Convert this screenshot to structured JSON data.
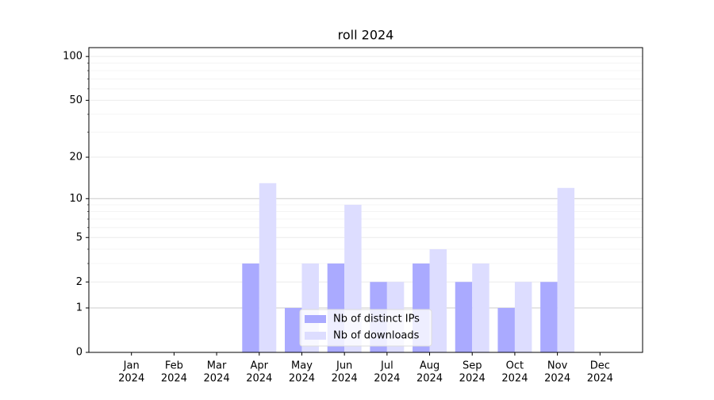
{
  "chart_data": {
    "type": "bar",
    "title": "roll 2024",
    "categories": [
      [
        "Jan",
        "2024"
      ],
      [
        "Feb",
        "2024"
      ],
      [
        "Mar",
        "2024"
      ],
      [
        "Apr",
        "2024"
      ],
      [
        "May",
        "2024"
      ],
      [
        "Jun",
        "2024"
      ],
      [
        "Jul",
        "2024"
      ],
      [
        "Aug",
        "2024"
      ],
      [
        "Sep",
        "2024"
      ],
      [
        "Oct",
        "2024"
      ],
      [
        "Nov",
        "2024"
      ],
      [
        "Dec",
        "2024"
      ]
    ],
    "series": [
      {
        "name": "Nb of distinct IPs",
        "color": "#aaaaff",
        "values": [
          0,
          0,
          0,
          3,
          1,
          3,
          2,
          3,
          2,
          1,
          2,
          0
        ]
      },
      {
        "name": "Nb of downloads",
        "color": "#ddddff",
        "values": [
          0,
          0,
          0,
          13,
          3,
          9,
          2,
          4,
          3,
          2,
          12,
          0
        ]
      }
    ],
    "yscale": "log1p",
    "ylim": [
      0,
      115
    ],
    "yticks": [
      0,
      1,
      2,
      5,
      10,
      20,
      50,
      100
    ],
    "yminor": [
      3,
      4,
      6,
      7,
      8,
      9,
      30,
      40,
      60,
      70,
      80,
      90
    ],
    "grid_major": [
      1,
      10
    ],
    "grid": true,
    "legend": "lower center"
  }
}
